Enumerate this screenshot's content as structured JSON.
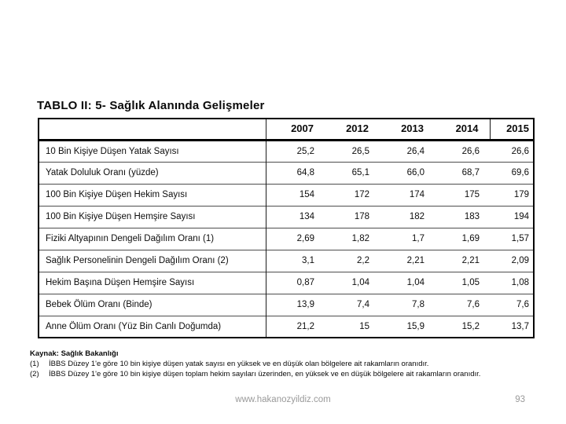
{
  "title": "TABLO II: 5- Sağlık Alanında Gelişmeler",
  "table": {
    "label_column_header": "",
    "columns": [
      "2007",
      "2012",
      "2013",
      "2014",
      "2015"
    ],
    "rows": [
      {
        "label": "10 Bin Kişiye Düşen Yatak Sayısı",
        "values": [
          "25,2",
          "26,5",
          "26,4",
          "26,6",
          "26,6"
        ]
      },
      {
        "label": "Yatak Doluluk Oranı (yüzde)",
        "values": [
          "64,8",
          "65,1",
          "66,0",
          "68,7",
          "69,6"
        ]
      },
      {
        "label": "100 Bin Kişiye Düşen Hekim Sayısı",
        "values": [
          "154",
          "172",
          "174",
          "175",
          "179"
        ]
      },
      {
        "label": "100 Bin Kişiye Düşen Hemşire Sayısı",
        "values": [
          "134",
          "178",
          "182",
          "183",
          "194"
        ]
      },
      {
        "label": "Fiziki Altyapının Dengeli Dağılım Oranı (1)",
        "values": [
          "2,69",
          "1,82",
          "1,7",
          "1,69",
          "1,57"
        ]
      },
      {
        "label": "Sağlık Personelinin Dengeli Dağılım Oranı (2)",
        "values": [
          "3,1",
          "2,2",
          "2,21",
          "2,21",
          "2,09"
        ]
      },
      {
        "label": "Hekim Başına Düşen Hemşire Sayısı",
        "values": [
          "0,87",
          "1,04",
          "1,04",
          "1,05",
          "1,08"
        ]
      },
      {
        "label": "Bebek Ölüm Oranı (Binde)",
        "values": [
          "13,9",
          "7,4",
          "7,8",
          "7,6",
          "7,6"
        ]
      },
      {
        "label": "Anne Ölüm Oranı (Yüz Bin Canlı Doğumda)",
        "values": [
          "21,2",
          "15",
          "15,9",
          "15,2",
          "13,7"
        ]
      }
    ]
  },
  "notes": {
    "source": "Kaynak: Sağlık Bakanlığı",
    "items": [
      {
        "num": "(1)",
        "text": "İBBS Düzey 1'e göre 10 bin kişiye düşen yatak sayısı en yüksek ve en düşük olan bölgelere ait rakamların oranıdır."
      },
      {
        "num": "(2)",
        "text": "İBBS Düzey 1'e göre 10 bin kişiye düşen toplam hekim sayıları üzerinden, en yüksek ve en düşük bölgelere ait rakamların oranıdır."
      }
    ]
  },
  "footer": {
    "website": "www.hakanozyildiz.com",
    "page_number": "93"
  },
  "colors": {
    "background": "#ffffff",
    "text": "#0a0a0a",
    "table_border": "#000000",
    "footer_text": "#9a9a9a"
  }
}
